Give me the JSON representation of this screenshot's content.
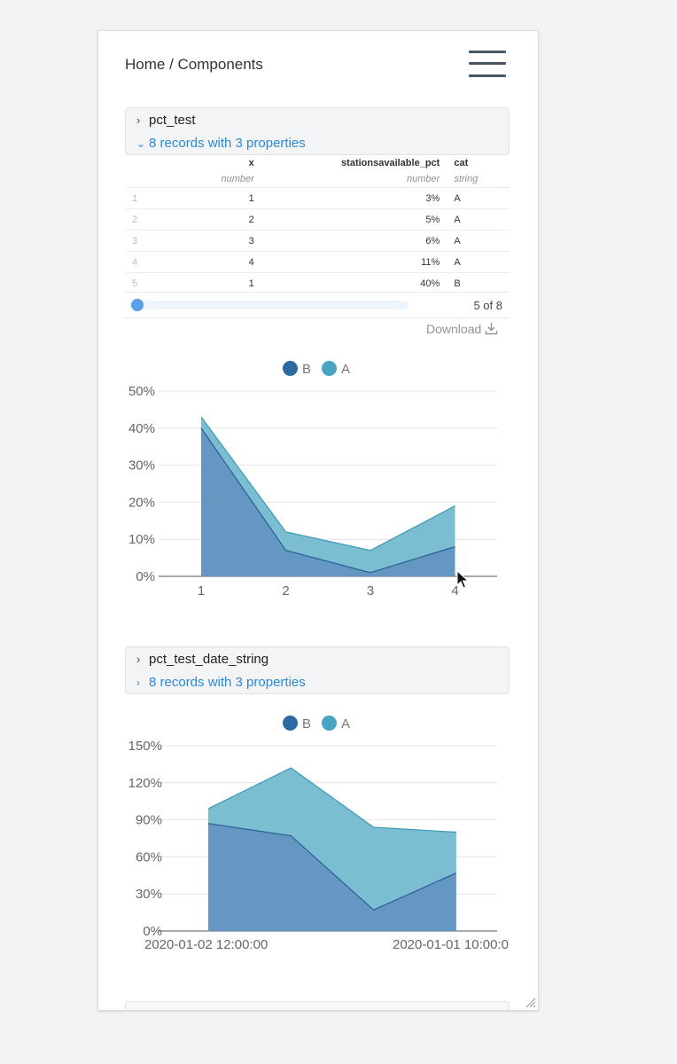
{
  "breadcrumb": "Home / Components",
  "colors": {
    "series_b": "#2d6aa4",
    "series_a": "#48a4c3",
    "link": "#2b8ad8"
  },
  "dataset1": {
    "name": "pct_test",
    "summary": "8 records with 3 properties",
    "columns": [
      {
        "name": "x",
        "type": "number"
      },
      {
        "name": "stationsavailable_pct",
        "type": "number"
      },
      {
        "name": "cat",
        "type": "string"
      }
    ],
    "rows": [
      {
        "idx": "1",
        "x": "1",
        "pct": "3%",
        "cat": "A"
      },
      {
        "idx": "2",
        "x": "2",
        "pct": "5%",
        "cat": "A"
      },
      {
        "idx": "3",
        "x": "3",
        "pct": "6%",
        "cat": "A"
      },
      {
        "idx": "4",
        "x": "4",
        "pct": "11%",
        "cat": "A"
      },
      {
        "idx": "5",
        "x": "1",
        "pct": "40%",
        "cat": "B"
      }
    ],
    "scroll_fraction": 0.0,
    "page_count": "5 of 8",
    "download_label": "Download"
  },
  "dataset2": {
    "name": "pct_test_date_string",
    "summary": "8 records with 3 properties"
  },
  "chart_data": [
    {
      "type": "area",
      "stacked": true,
      "x": [
        1,
        2,
        3,
        4
      ],
      "series": [
        {
          "name": "B",
          "values": [
            40,
            7,
            1,
            8
          ]
        },
        {
          "name": "A",
          "values": [
            3,
            5,
            6,
            11
          ]
        }
      ],
      "y_ticks": [
        "0%",
        "10%",
        "20%",
        "30%",
        "40%",
        "50%"
      ],
      "x_ticks": [
        "1",
        "2",
        "3",
        "4"
      ],
      "ylim": [
        0,
        50
      ],
      "legend_position": "top"
    },
    {
      "type": "area",
      "stacked": true,
      "x": [
        "2020-01-02 12:00:00",
        "",
        "",
        "2020-01-01 10:00:0"
      ],
      "series": [
        {
          "name": "B",
          "values": [
            87,
            77,
            17,
            47
          ]
        },
        {
          "name": "A",
          "values": [
            12,
            55,
            67,
            33
          ]
        }
      ],
      "y_ticks": [
        "0%",
        "30%",
        "60%",
        "90%",
        "120%",
        "150%"
      ],
      "x_ticks": [
        "2020-01-02 12:00:00",
        "2020-01-01 10:00:0"
      ],
      "ylim": [
        0,
        150
      ],
      "legend_position": "top"
    }
  ]
}
